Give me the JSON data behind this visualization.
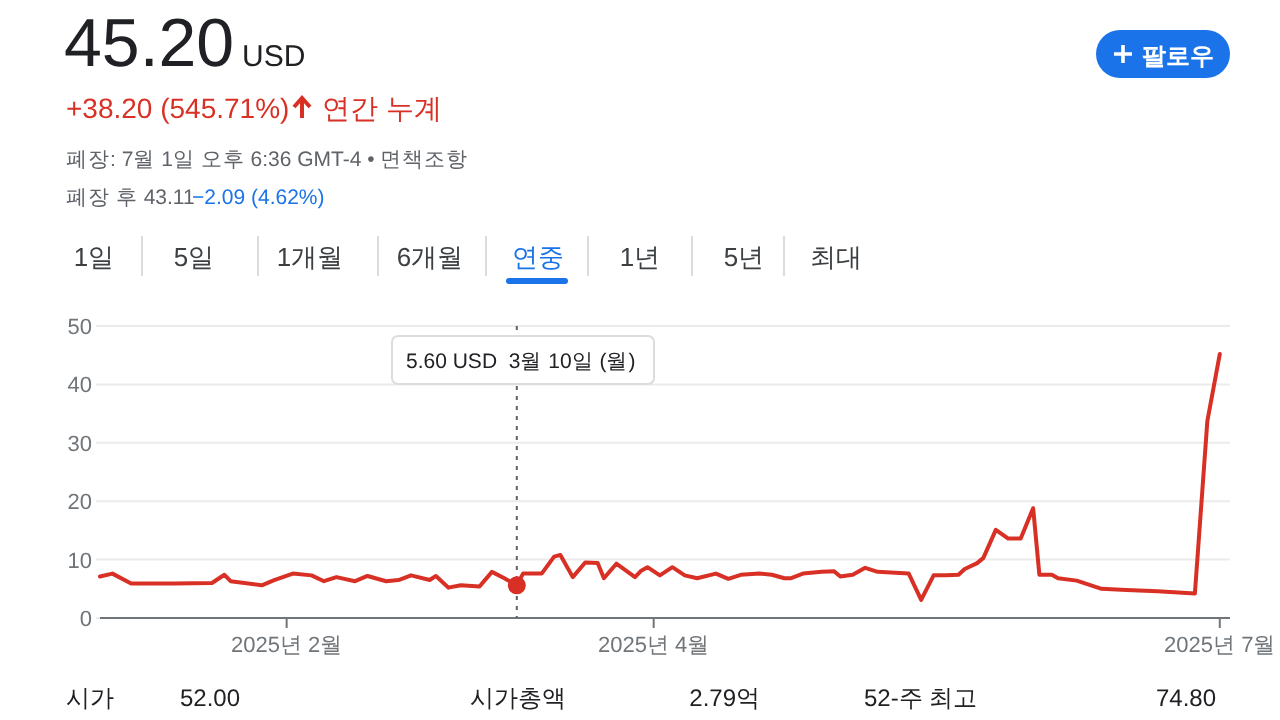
{
  "chart_data": {
    "type": "line",
    "title": "45.20",
    "subtitle": "USD",
    "x": [
      "2025-01-02",
      "2025-01-04",
      "2025-01-07",
      "2025-01-14",
      "2025-01-20",
      "2025-01-22",
      "2025-01-23",
      "2025-01-28",
      "2025-01-30",
      "2025-02-02",
      "2025-02-05",
      "2025-02-07",
      "2025-02-09",
      "2025-02-12",
      "2025-02-14",
      "2025-02-17",
      "2025-02-19",
      "2025-02-21",
      "2025-02-24",
      "2025-02-25",
      "2025-02-27",
      "2025-03-01",
      "2025-03-04",
      "2025-03-06",
      "2025-03-08",
      "2025-03-10",
      "2025-03-11",
      "2025-03-14",
      "2025-03-16",
      "2025-03-17",
      "2025-03-19",
      "2025-03-21",
      "2025-03-23",
      "2025-03-24",
      "2025-03-26",
      "2025-03-29",
      "2025-03-30",
      "2025-03-31",
      "2025-04-02",
      "2025-04-04",
      "2025-04-06",
      "2025-04-08",
      "2025-04-11",
      "2025-04-13",
      "2025-04-15",
      "2025-04-18",
      "2025-04-20",
      "2025-04-22",
      "2025-04-23",
      "2025-04-25",
      "2025-04-28",
      "2025-04-30",
      "2025-05-01",
      "2025-05-03",
      "2025-05-05",
      "2025-05-07",
      "2025-05-12",
      "2025-05-14",
      "2025-05-16",
      "2025-05-18",
      "2025-05-20",
      "2025-05-21",
      "2025-05-23",
      "2025-05-24",
      "2025-05-26",
      "2025-05-28",
      "2025-05-30",
      "2025-06-01",
      "2025-06-02",
      "2025-06-04",
      "2025-06-05",
      "2025-06-08",
      "2025-06-12",
      "2025-06-16",
      "2025-06-21",
      "2025-06-27",
      "2025-06-29",
      "2025-07-01"
    ],
    "series": [
      {
        "color": "#d93025",
        "values": [
          7.1,
          7.6,
          5.9,
          5.9,
          6.0,
          7.4,
          6.3,
          5.6,
          6.5,
          7.6,
          7.3,
          6.3,
          7.0,
          6.3,
          7.2,
          6.3,
          6.5,
          7.3,
          6.5,
          7.2,
          5.2,
          5.6,
          5.4,
          7.9,
          6.8,
          5.6,
          7.6,
          7.6,
          10.5,
          10.8,
          7.0,
          9.5,
          9.4,
          6.8,
          9.3,
          7.0,
          8.1,
          8.7,
          7.3,
          8.7,
          7.3,
          6.8,
          7.6,
          6.7,
          7.4,
          7.6,
          7.4,
          6.8,
          6.8,
          7.6,
          7.9,
          8.0,
          7.1,
          7.4,
          8.6,
          7.9,
          7.6,
          3.1,
          7.3,
          7.3,
          7.4,
          8.4,
          9.4,
          10.3,
          15.1,
          13.6,
          13.6,
          18.8,
          7.4,
          7.4,
          6.8,
          6.4,
          5.0,
          4.8,
          4.6,
          4.2,
          33.7,
          45.2
        ]
      },
      {
        "type": "scatter",
        "color": "#d93025",
        "marker": "circle",
        "x": [
          "2025-03-10"
        ],
        "values": [
          5.6
        ]
      }
    ],
    "xlim": [
      "2025-01-02",
      "2025-07-02"
    ],
    "xticks": [
      {
        "value": "2025-02-01",
        "label": "2025년 2월"
      },
      {
        "value": "2025-04-01",
        "label": "2025년 4월"
      },
      {
        "value": "2025-07-01",
        "label": "2025년 7월"
      }
    ],
    "ylim": [
      0,
      50
    ],
    "yticks": [
      0,
      10,
      20,
      30,
      40,
      50
    ],
    "grid": "y",
    "marker": "none",
    "line_style": "solid",
    "ref_lines": [
      {
        "axis": "x",
        "value": "2025-03-10",
        "color": "#5f6368",
        "line_style": "dotted"
      }
    ],
    "annotations": [
      "+38.20 (545.71%)",
      "연간 누계",
      "폐장: 7월 1일 오후 6:36 GMT-4 • 면책조항",
      "폐장 후 43.11",
      "−2.09 (4.62%)",
      "팔로우",
      "1일",
      "5일",
      "1개월",
      "6개월",
      "연중",
      "1년",
      "5년",
      "최대",
      "시가",
      "52.00",
      "시가총액",
      "2.79억",
      "52-주 최고",
      "74.80",
      "5.60 USD  3월 10일 (월)"
    ]
  }
}
